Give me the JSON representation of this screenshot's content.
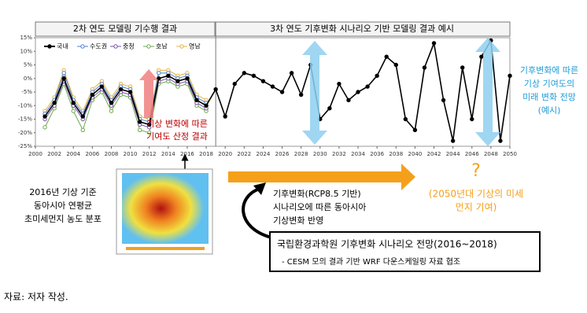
{
  "chart_data": {
    "type": "line",
    "headers": [
      "2차 연도 모델링 기수행 결과",
      "3차 연도 기후변화 시나리오 기반 모델링 결과 예시"
    ],
    "x": [
      2001,
      2002,
      2003,
      2004,
      2005,
      2006,
      2007,
      2008,
      2009,
      2010,
      2011,
      2012,
      2013,
      2014,
      2015,
      2016,
      2017,
      2018,
      2019,
      2020,
      2021,
      2022,
      2023,
      2024,
      2025,
      2026,
      2027,
      2028,
      2029,
      2030,
      2031,
      2032,
      2033,
      2034,
      2035,
      2036,
      2037,
      2038,
      2039,
      2040,
      2041,
      2042,
      2043,
      2044,
      2045,
      2046,
      2047,
      2048,
      2049,
      2050
    ],
    "series": [
      {
        "name": "국내",
        "color": "#000000",
        "values": [
          -14,
          -9,
          0,
          -9,
          -14,
          -6,
          -3,
          -9,
          -4,
          -5,
          -16,
          -17,
          0,
          1,
          -1,
          0,
          -8,
          -10,
          -4,
          -14,
          -2,
          2,
          1,
          -1,
          -3,
          -5,
          2,
          -6,
          5,
          -15,
          -11,
          -2,
          -8,
          -5,
          -3,
          1,
          8,
          5,
          -15,
          -19,
          4,
          13,
          -8,
          -23,
          4,
          -15,
          8,
          14,
          -23,
          1
        ]
      },
      {
        "name": "수도권",
        "color": "#4a7fd0",
        "values": [
          -13,
          -8,
          2,
          -8,
          -13,
          -5,
          -2,
          -8,
          -3,
          -4,
          -15,
          -16,
          2,
          2,
          0,
          1,
          -7,
          -9,
          null,
          null,
          null,
          null,
          null,
          null,
          null,
          null,
          null,
          null,
          null,
          null,
          null,
          null,
          null,
          null,
          null,
          null,
          null,
          null,
          null,
          null,
          null,
          null,
          null,
          null,
          null,
          null,
          null,
          null,
          null,
          null
        ]
      },
      {
        "name": "충청",
        "color": "#7a4ea8",
        "values": [
          -15,
          -10,
          -1,
          -10,
          -15,
          -7,
          -4,
          -10,
          -5,
          -6,
          -17,
          -18,
          -1,
          0,
          -2,
          -1,
          -9,
          -11,
          null,
          null,
          null,
          null,
          null,
          null,
          null,
          null,
          null,
          null,
          null,
          null,
          null,
          null,
          null,
          null,
          null,
          null,
          null,
          null,
          null,
          null,
          null,
          null,
          null,
          null,
          null,
          null,
          null,
          null,
          null,
          null
        ]
      },
      {
        "name": "호남",
        "color": "#6aaa4a",
        "values": [
          -18,
          -11,
          -2,
          -12,
          -19,
          -8,
          -5,
          -12,
          -6,
          -7,
          -19,
          -20,
          -2,
          -1,
          -3,
          -2,
          -10,
          -12,
          null,
          null,
          null,
          null,
          null,
          null,
          null,
          null,
          null,
          null,
          null,
          null,
          null,
          null,
          null,
          null,
          null,
          null,
          null,
          null,
          null,
          null,
          null,
          null,
          null,
          null,
          null,
          null,
          null,
          null,
          null,
          null
        ]
      },
      {
        "name": "영남",
        "color": "#e8b040",
        "values": [
          -12,
          -7,
          3,
          -7,
          -12,
          -4,
          -1,
          -7,
          -2,
          -3,
          -14,
          -15,
          3,
          3,
          1,
          2,
          -6,
          -8,
          null,
          null,
          null,
          null,
          null,
          null,
          null,
          null,
          null,
          null,
          null,
          null,
          null,
          null,
          null,
          null,
          null,
          null,
          null,
          null,
          null,
          null,
          null,
          null,
          null,
          null,
          null,
          null,
          null,
          null,
          null,
          null
        ]
      }
    ],
    "xlim": [
      2000,
      2050
    ],
    "xticks": [
      2000,
      2002,
      2004,
      2006,
      2008,
      2010,
      2012,
      2014,
      2016,
      2018,
      2020,
      2022,
      2024,
      2026,
      2028,
      2030,
      2032,
      2034,
      2036,
      2038,
      2040,
      2042,
      2044,
      2046,
      2048,
      2050
    ],
    "ylim": [
      -25,
      15
    ],
    "yticks": [
      {
        "value": 15,
        "label": "15%"
      },
      {
        "value": 10,
        "label": "10%"
      },
      {
        "value": 5,
        "label": "5%"
      },
      {
        "value": 0,
        "label": "0%"
      },
      {
        "value": -5,
        "label": "-5%"
      },
      {
        "value": -10,
        "label": "-10%"
      },
      {
        "value": -15,
        "label": "-15%"
      },
      {
        "value": -20,
        "label": "-20%"
      },
      {
        "value": -25,
        "label": "-25%"
      }
    ]
  },
  "annotations": {
    "red_note": [
      "기상 변화에 따른",
      "기여도 산정 결과"
    ],
    "blue_note": [
      "기후변화에 따른",
      "기상 기여도의",
      "미래 변화 전망",
      "(예시)"
    ],
    "map_note": [
      "2016년 기상 기준",
      "동아시아 연평균",
      "초미세먼지 농도 분포"
    ],
    "question": "?",
    "future_note": [
      "(2050년대 기상의 미세",
      "먼지 기여)"
    ],
    "scenario_note": [
      "기후변화(RCP8.5 기반)",
      "시나리오에 따른 동아시아",
      "기상변화 반영"
    ],
    "box_title": "국립환경과학원 기후변화 시나리오 전망(2016~2018)",
    "box_sub": "- CESM 모의 결과 기반 WRF 다운스케일링 자료 협조",
    "source": "자료: 저자 작성."
  }
}
